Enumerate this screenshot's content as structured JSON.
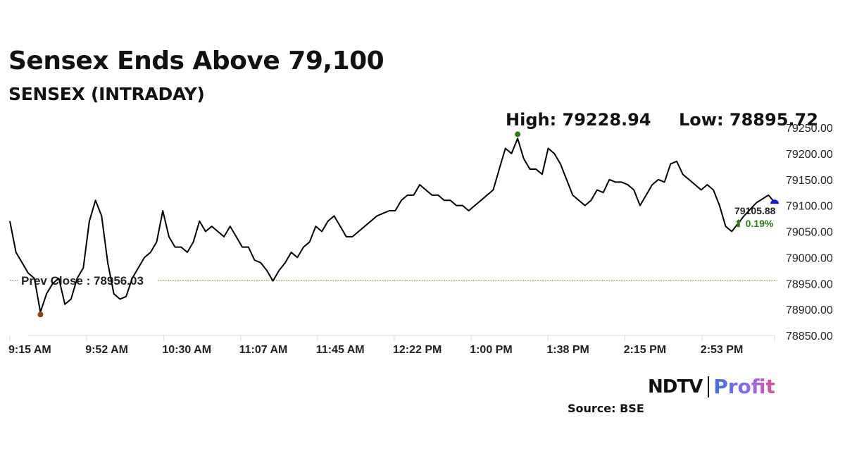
{
  "header": {
    "title": "Sensex Ends Above 79,100",
    "subtitle": "SENSEX (INTRADAY)",
    "high_label": "High: 79228.94",
    "low_label": "Low: 78895.72"
  },
  "footer": {
    "brand_left": "NDTV",
    "brand_right": "Profit",
    "source": "Source: BSE"
  },
  "colors": {
    "line": "#000000",
    "prev_close_line": "#a0783c",
    "high_marker": "#2e7d1a",
    "low_marker": "#8b4513",
    "last_marker": "#1a1ad0",
    "change_positive": "#2e7d1a",
    "axis": "#dddddd"
  },
  "chart_data": {
    "type": "line",
    "title": "SENSEX (INTRADAY)",
    "xlabel": "",
    "ylabel": "",
    "ylim": [
      78850,
      79250
    ],
    "yticks": [
      "79250.00",
      "79200.00",
      "79150.00",
      "79100.00",
      "79050.00",
      "79000.00",
      "78950.00",
      "78900.00",
      "78850.00"
    ],
    "xticks": [
      "9:15 AM",
      "9:52 AM",
      "10:30 AM",
      "11:07 AM",
      "11:45 AM",
      "12:22 PM",
      "1:00 PM",
      "1:38 PM",
      "2:15 PM",
      "2:53 PM"
    ],
    "grid": false,
    "legend": null,
    "high": 79228.94,
    "low": 78895.72,
    "prev_close": 78956.03,
    "prev_close_label": "Prev Close : 78956.03",
    "last": 79105.88,
    "last_label": "79105.88",
    "change_label": "⬆ 0.19%",
    "change_pct": 0.19,
    "series": [
      {
        "name": "SENSEX",
        "x_minutes_from_open": [
          0,
          3,
          6,
          9,
          12,
          15,
          18,
          21,
          24,
          27,
          30,
          33,
          36,
          39,
          42,
          45,
          48,
          51,
          54,
          57,
          60,
          63,
          66,
          69,
          72,
          75,
          78,
          81,
          84,
          87,
          90,
          93,
          96,
          99,
          102,
          105,
          108,
          111,
          114,
          117,
          120,
          123,
          126,
          129,
          132,
          135,
          138,
          141,
          144,
          147,
          150,
          153,
          156,
          159,
          162,
          165,
          168,
          171,
          174,
          177,
          180,
          183,
          186,
          189,
          192,
          195,
          198,
          201,
          204,
          207,
          210,
          213,
          216,
          219,
          222,
          225,
          228,
          231,
          234,
          237,
          240,
          243,
          246,
          249,
          252,
          255,
          258,
          261,
          264,
          267,
          270,
          273,
          276,
          279,
          282,
          285,
          288,
          291,
          294,
          297,
          300,
          303,
          306,
          309,
          312,
          315,
          318,
          321,
          324,
          327,
          330,
          333,
          336,
          339,
          342,
          345,
          348,
          351,
          354,
          360,
          366,
          372,
          375
        ],
        "values": [
          79070,
          79010,
          78990,
          78970,
          78960,
          78895,
          78930,
          78950,
          78960,
          78910,
          78920,
          78960,
          78980,
          79070,
          79110,
          79080,
          78990,
          78930,
          78920,
          78925,
          78960,
          78980,
          79000,
          79010,
          79030,
          79090,
          79040,
          79020,
          79020,
          79010,
          79030,
          79070,
          79050,
          79060,
          79050,
          79040,
          79060,
          79040,
          79020,
          79020,
          78995,
          78990,
          78975,
          78955,
          78975,
          78990,
          79010,
          79000,
          79020,
          79030,
          79060,
          79050,
          79070,
          79080,
          79060,
          79040,
          79040,
          79050,
          79060,
          79070,
          79080,
          79085,
          79090,
          79090,
          79110,
          79120,
          79120,
          79140,
          79130,
          79120,
          79120,
          79110,
          79110,
          79100,
          79100,
          79090,
          79100,
          79110,
          79120,
          79130,
          79170,
          79210,
          79200,
          79229,
          79190,
          79170,
          79170,
          79160,
          79210,
          79200,
          79180,
          79150,
          79120,
          79110,
          79100,
          79110,
          79130,
          79125,
          79150,
          79145,
          79145,
          79140,
          79130,
          79100,
          79120,
          79140,
          79150,
          79145,
          79180,
          79185,
          79160,
          79150,
          79140,
          79130,
          79140,
          79130,
          79100,
          79060,
          79050,
          79080,
          79105,
          79120,
          79106
        ]
      }
    ]
  }
}
